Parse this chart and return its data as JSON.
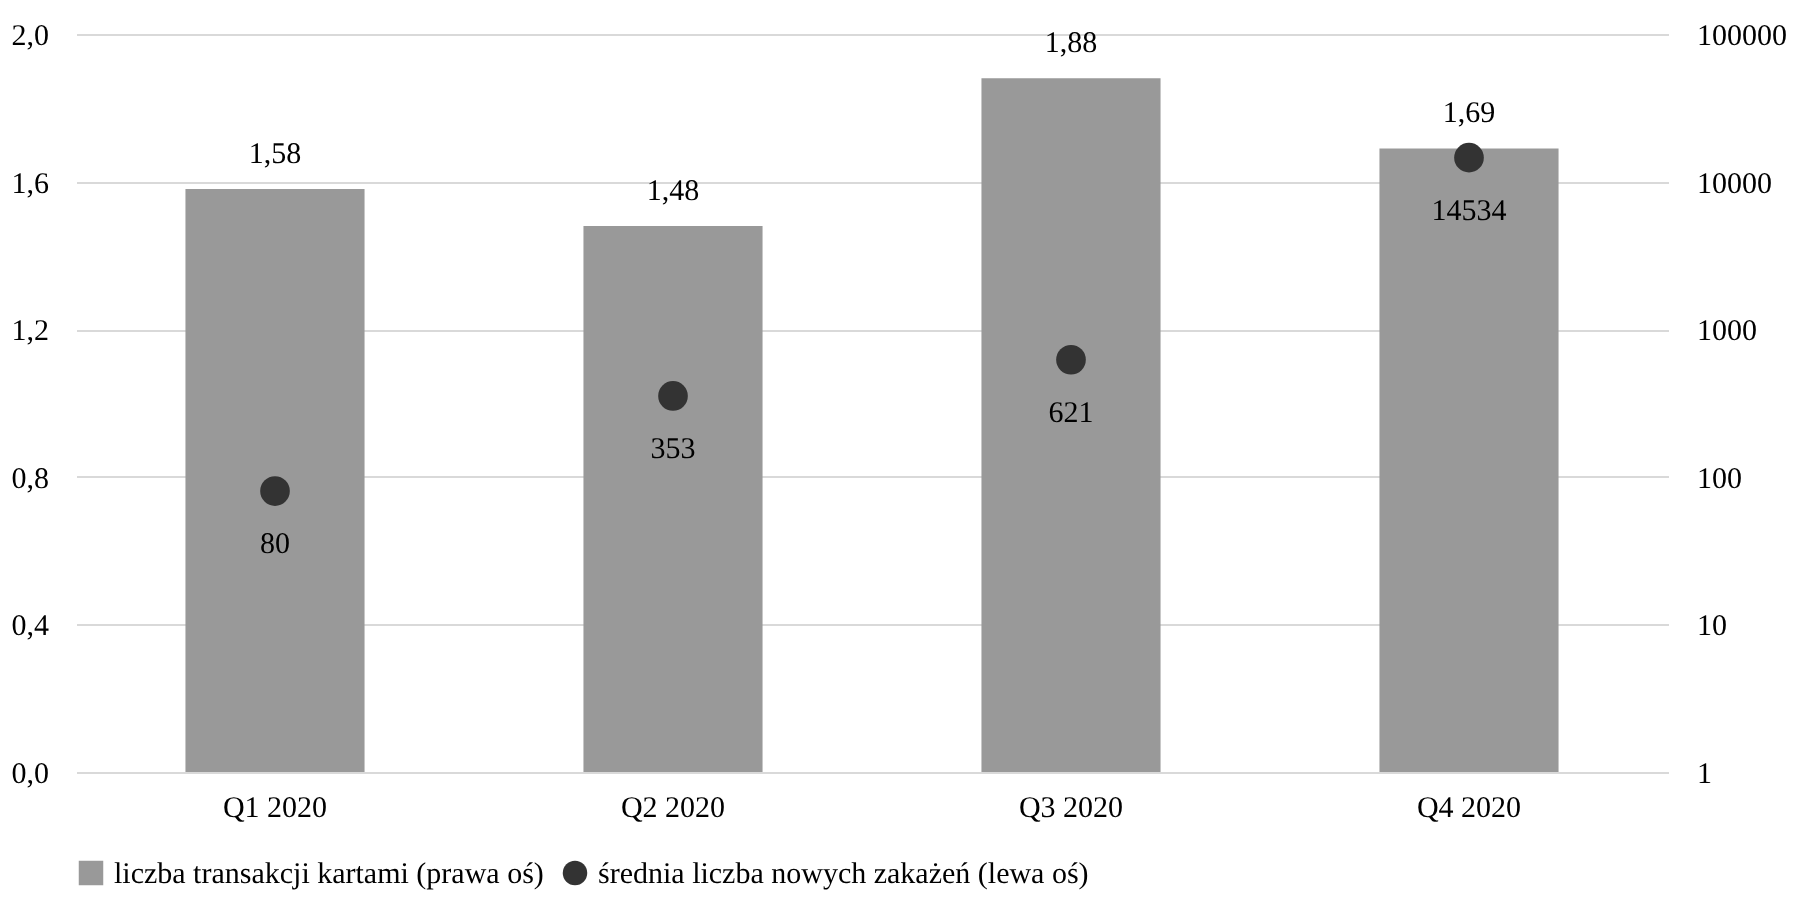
{
  "chart_data": {
    "type": "bar",
    "categories": [
      "Q1 2020",
      "Q2 2020",
      "Q3 2020",
      "Q4 2020"
    ],
    "series": [
      {
        "name": "liczba transakcji kartami (prawa oś)",
        "color": "#999999",
        "values": [
          1.58,
          1.48,
          1.88,
          1.69
        ],
        "value_labels": [
          "1,58",
          "1,48",
          "1,88",
          "1,69"
        ]
      },
      {
        "name": "średnia liczba nowych zakażeń (lewa oś)",
        "type": "scatter",
        "axis": "y2",
        "marker": "circle",
        "color": "#333333",
        "values": [
          80,
          353,
          621,
          14534
        ],
        "value_labels": [
          "80",
          "353",
          "621",
          "14534"
        ]
      }
    ],
    "ylim": [
      0,
      2
    ],
    "yticks": [
      {
        "value": 0,
        "label": "0,0"
      },
      {
        "value": 0.4,
        "label": "0,4"
      },
      {
        "value": 0.8,
        "label": "0,8"
      },
      {
        "value": 1.2,
        "label": "1,2"
      },
      {
        "value": 1.6,
        "label": "1,6"
      },
      {
        "value": 2,
        "label": "2,0"
      }
    ],
    "y2lim": [
      1,
      100000
    ],
    "y2ticks": [
      1,
      10,
      100,
      1000,
      10000,
      100000
    ],
    "log": "y2",
    "grid": "y",
    "legend": "bottom"
  }
}
